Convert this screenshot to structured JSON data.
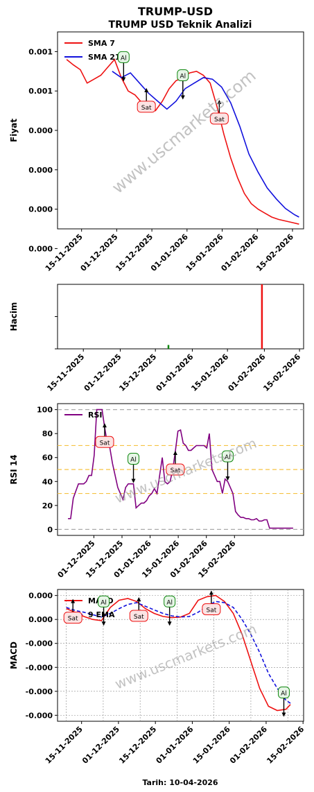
{
  "title": "TRUMP-USD",
  "date_caption": "Tarih: 10-04-2026",
  "watermark": "www.uscmarkets.com",
  "colors": {
    "red": "#ee1111",
    "blue": "#1111dd",
    "green": "#118811",
    "purple": "#800080",
    "orange": "#f5c242",
    "gray": "#aaaaaa"
  },
  "chart_data": [
    {
      "type": "line",
      "title": "TRUMP USD Teknik Analizi",
      "ylabel": "Fiyat",
      "yticks": [
        "0.001",
        "0.001",
        "0.000",
        "0.000",
        "0.000",
        "0.000"
      ],
      "xticks": [
        "15-11-2025",
        "01-12-2025",
        "15-12-2025",
        "01-01-2026",
        "15-01-2026",
        "01-02-2026",
        "15-02-2026"
      ],
      "legend": {
        "position": "top-left",
        "entries": [
          "SMA 7",
          "SMA 21"
        ]
      },
      "series": [
        {
          "name": "SMA 7",
          "color": "red",
          "x": [
            0,
            3,
            6,
            9,
            12,
            15,
            18,
            21,
            24,
            27,
            30,
            33,
            36,
            39,
            42,
            45,
            48,
            51,
            54,
            57,
            60,
            63,
            66,
            69,
            72,
            75,
            78,
            81,
            84,
            87,
            90,
            93,
            96,
            99,
            102
          ],
          "values": [
            1.15,
            1.08,
            1.02,
            0.85,
            0.9,
            0.95,
            1.05,
            1.15,
            0.92,
            0.75,
            0.7,
            0.6,
            0.52,
            0.5,
            0.62,
            0.78,
            0.88,
            0.92,
            0.98,
            1.0,
            0.95,
            0.85,
            0.55,
            0.2,
            -0.1,
            -0.35,
            -0.55,
            -0.68,
            -0.75,
            -0.8,
            -0.85,
            -0.88,
            -0.9,
            -0.92,
            -0.94
          ]
        },
        {
          "name": "SMA 21",
          "color": "blue",
          "x": [
            20,
            24,
            28,
            32,
            36,
            40,
            44,
            48,
            52,
            56,
            60,
            64,
            68,
            72,
            76,
            80,
            84,
            88,
            92,
            96,
            100,
            102
          ],
          "values": [
            1.0,
            0.92,
            0.98,
            0.85,
            0.72,
            0.62,
            0.52,
            0.62,
            0.78,
            0.85,
            0.92,
            0.9,
            0.8,
            0.6,
            0.3,
            -0.05,
            -0.28,
            -0.48,
            -0.62,
            -0.74,
            -0.82,
            -0.85
          ]
        }
      ],
      "signals": [
        {
          "label": "Al",
          "x": 25,
          "y": 1.18
        },
        {
          "label": "Sat",
          "x": 35,
          "y": 0.55
        },
        {
          "label": "Al",
          "x": 51,
          "y": 0.95
        },
        {
          "label": "Sat",
          "x": 67,
          "y": 0.4
        }
      ]
    },
    {
      "type": "bar",
      "ylabel": "Hacim",
      "xticks": [
        "15-11-2025",
        "01-12-2025",
        "15-12-2025",
        "01-01-2026",
        "15-01-2026",
        "01-02-2026",
        "15-02-2026"
      ],
      "bars": [
        {
          "x": 45,
          "value": 0.06,
          "color": "green"
        },
        {
          "x": 83,
          "value": 1.0,
          "color": "red"
        }
      ]
    },
    {
      "type": "line",
      "ylabel": "RSI 14",
      "yticks": [
        "0",
        "20",
        "40",
        "60",
        "80",
        "100"
      ],
      "ylim": [
        0,
        100
      ],
      "xticks": [
        "01-12-2025",
        "15-12-2025",
        "01-01-2026",
        "15-01-2026",
        "01-02-2026",
        "15-02-2026"
      ],
      "legend": {
        "position": "top-left",
        "entries": [
          "RSI"
        ]
      },
      "series": [
        {
          "name": "RSI",
          "color": "purple",
          "x": [
            0,
            1,
            2,
            3,
            4,
            5,
            6,
            7,
            8,
            9,
            10,
            11,
            12,
            13,
            14,
            15,
            16,
            17,
            18,
            19,
            20,
            21,
            22,
            23,
            24,
            25,
            26,
            27,
            28,
            29,
            30,
            31,
            32,
            33,
            34,
            35,
            36,
            37,
            38,
            39,
            40,
            41,
            42,
            43,
            44,
            45,
            46,
            47,
            48,
            49,
            50,
            51,
            52,
            53,
            54,
            55,
            56,
            57,
            58,
            59,
            60,
            61,
            62,
            63,
            64,
            65,
            66,
            67,
            68,
            69,
            70,
            71,
            72,
            73,
            74,
            75,
            76,
            77,
            78,
            79,
            80,
            81,
            82,
            83,
            84,
            85,
            86
          ],
          "values": [
            9,
            9,
            26,
            32,
            38,
            38,
            38,
            40,
            45,
            45,
            62,
            100,
            100,
            100,
            85,
            72,
            68,
            55,
            45,
            35,
            30,
            25,
            35,
            38,
            38,
            38,
            18,
            20,
            22,
            22,
            24,
            28,
            30,
            34,
            30,
            45,
            60,
            40,
            38,
            40,
            50,
            65,
            82,
            83,
            72,
            70,
            66,
            66,
            68,
            70,
            70,
            70,
            70,
            68,
            80,
            50,
            45,
            40,
            40,
            30,
            42,
            40,
            35,
            30,
            15,
            12,
            10,
            10,
            9,
            9,
            8,
            8,
            9,
            7,
            7,
            8,
            8,
            1,
            1,
            1,
            1,
            1,
            1,
            1,
            1,
            1,
            1
          ]
        }
      ],
      "hlines": [
        {
          "value": 100,
          "color": "gray"
        },
        {
          "value": 70,
          "color": "orange"
        },
        {
          "value": 50,
          "color": "orange"
        },
        {
          "value": 30,
          "color": "orange"
        },
        {
          "value": 0,
          "color": "gray"
        }
      ],
      "signals": [
        {
          "label": "Sat",
          "x": 14,
          "y": 73
        },
        {
          "label": "Al",
          "x": 25,
          "y": 59
        },
        {
          "label": "Sat",
          "x": 41,
          "y": 50
        },
        {
          "label": "Al",
          "x": 61,
          "y": 61
        }
      ]
    },
    {
      "type": "line",
      "ylabel": "MACD",
      "yticks": [
        "0.000",
        "0.000",
        "-0.000",
        "-0.000",
        "-0.000",
        "-0.000"
      ],
      "xticks": [
        "15-11-2025",
        "01-12-2025",
        "15-12-2025",
        "01-01-2026",
        "15-01-2026",
        "01-02-2026",
        "15-02-2026"
      ],
      "legend": {
        "position": "top-left",
        "entries": [
          "MACD",
          "9 EMA"
        ]
      },
      "series": [
        {
          "name": "MACD",
          "color": "red",
          "x": [
            0,
            4,
            8,
            12,
            16,
            20,
            24,
            28,
            32,
            36,
            40,
            44,
            48,
            52,
            56,
            60,
            64,
            68,
            70,
            72,
            76,
            80,
            84,
            88,
            92,
            96,
            100,
            102
          ],
          "values": [
            0.78,
            0.72,
            0.65,
            0.6,
            0.58,
            0.8,
            0.92,
            0.95,
            0.9,
            0.78,
            0.7,
            0.65,
            0.63,
            0.64,
            0.7,
            0.92,
            0.98,
            1.0,
            0.95,
            0.9,
            0.7,
            0.35,
            -0.1,
            -0.55,
            -0.85,
            -0.92,
            -0.9,
            -0.82
          ]
        },
        {
          "name": "9 EMA",
          "color": "blue",
          "x": [
            0,
            4,
            8,
            12,
            16,
            20,
            24,
            28,
            32,
            36,
            40,
            44,
            48,
            52,
            56,
            60,
            64,
            68,
            72,
            76,
            80,
            84,
            88,
            92,
            96,
            100,
            102
          ],
          "values": [
            0.8,
            0.75,
            0.72,
            0.68,
            0.64,
            0.7,
            0.78,
            0.85,
            0.88,
            0.82,
            0.76,
            0.7,
            0.66,
            0.64,
            0.65,
            0.72,
            0.82,
            0.9,
            0.88,
            0.8,
            0.6,
            0.35,
            0.05,
            -0.3,
            -0.55,
            -0.75,
            -0.8
          ]
        }
      ],
      "signals": [
        {
          "label": "Sat",
          "x": 3,
          "y": 0.63
        },
        {
          "label": "Al",
          "x": 17,
          "y": 0.9
        },
        {
          "label": "Sat",
          "x": 33,
          "y": 0.66
        },
        {
          "label": "Al",
          "x": 47,
          "y": 0.9
        },
        {
          "label": "Sat",
          "x": 66,
          "y": 0.77
        },
        {
          "label": "Al",
          "x": 99,
          "y": -0.62
        }
      ]
    }
  ]
}
